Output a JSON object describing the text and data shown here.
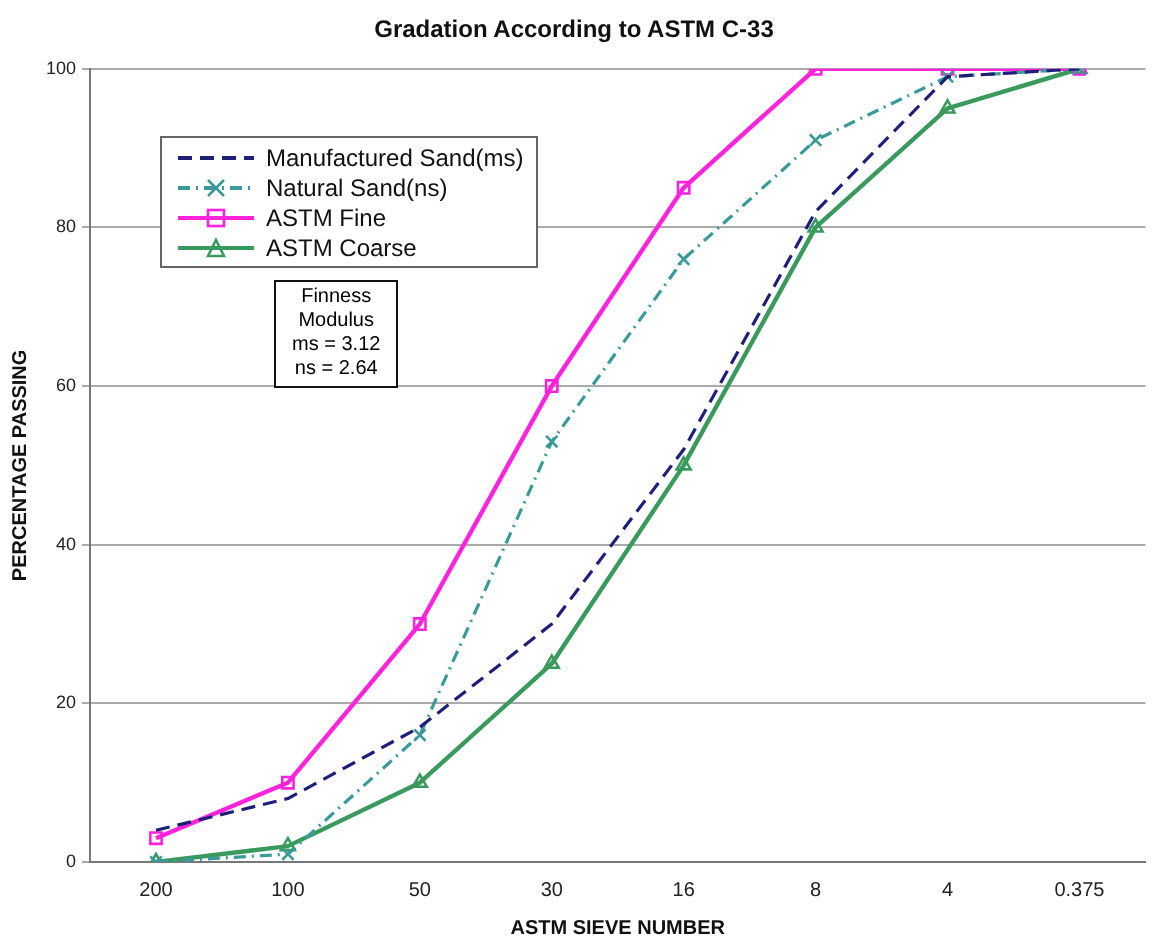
{
  "chart_data": {
    "type": "line",
    "title": "Gradation According to ASTM C-33",
    "xlabel": "ASTM SIEVE NUMBER",
    "ylabel": "PERCENTAGE PASSING",
    "categories": [
      "200",
      "100",
      "50",
      "30",
      "16",
      "8",
      "4",
      "0.375"
    ],
    "ylim": [
      0,
      100
    ],
    "yticks": [
      0,
      20,
      40,
      60,
      80,
      100
    ],
    "grid": "y",
    "legend": "top left",
    "series": [
      {
        "name": "Manufactured Sand(ms)",
        "color": "#1f1f7a",
        "line_style": "dashed",
        "marker": "none",
        "values": [
          4,
          8,
          17,
          30,
          52,
          82,
          99,
          100
        ]
      },
      {
        "name": "Natural Sand(ns)",
        "color": "#3a9a9a",
        "line_style": "dotted",
        "marker": "cross",
        "values": [
          0,
          1,
          16,
          53,
          76,
          91,
          99,
          100
        ]
      },
      {
        "name": "ASTM Fine",
        "color": "#ff22dd",
        "line_style": "solid",
        "marker": "square",
        "values": [
          3,
          10,
          30,
          60,
          85,
          100,
          100,
          100
        ]
      },
      {
        "name": "ASTM Coarse",
        "color": "#3a9a5e",
        "line_style": "solid",
        "marker": "triangle",
        "values": [
          0,
          2,
          10,
          25,
          50,
          80,
          95,
          100
        ]
      }
    ],
    "annotations": [
      "Finness\nModulus\nms = 3.12\nns = 2.64"
    ]
  }
}
